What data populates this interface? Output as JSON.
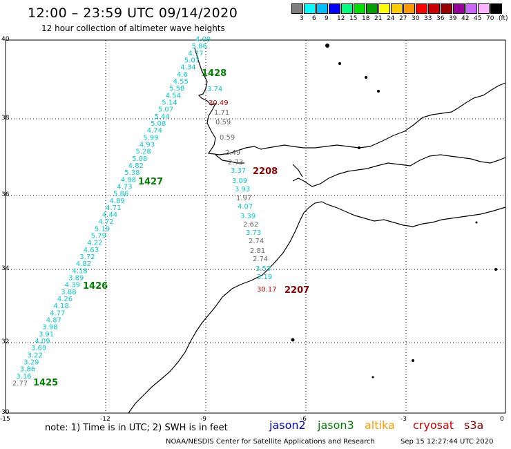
{
  "header": {
    "title": "12:00 – 23:59 UTC 09/14/2020",
    "subtitle": "12 hour collection of altimeter wave heights"
  },
  "scale": {
    "colors": [
      "#7f7f7f",
      "#00ffff",
      "#00bfff",
      "#0000ff",
      "#00ff7f",
      "#00dd00",
      "#00a000",
      "#ffff00",
      "#ffcc00",
      "#ff9900",
      "#ff0000",
      "#cc0000",
      "#990000",
      "#990099",
      "#cc66ff",
      "#ffb3ff",
      "#000000"
    ],
    "labels": [
      "3",
      "6",
      "9",
      "12",
      "15",
      "18",
      "21",
      "24",
      "27",
      "30",
      "33",
      "36",
      "39",
      "42",
      "45",
      "70",
      "(ft)"
    ]
  },
  "axes": {
    "lat_labels": [
      "40",
      "38",
      "36",
      "34",
      "32",
      "30"
    ],
    "lon_labels": [
      "-15",
      "-12",
      "-9",
      "-6",
      "-3",
      "0"
    ]
  },
  "passes": [
    {
      "label": "1428",
      "color": "#008000"
    },
    {
      "label": "1427",
      "color": "#008000"
    },
    {
      "label": "1426",
      "color": "#008000"
    },
    {
      "label": "1425",
      "color": "#008000"
    },
    {
      "label": "2208",
      "color": "#8b0000"
    },
    {
      "label": "2207",
      "color": "#8b0000"
    }
  ],
  "track_west": {
    "values": [
      "4.09",
      "5.86",
      "4.77",
      "5.07",
      "4.34",
      "4.6",
      "4.55",
      "5.58",
      "4.54",
      "5.14",
      "5.07",
      "5.44",
      "5.08",
      "4.74",
      "5.99",
      "4.93",
      "5.28",
      "5.08",
      "4.82",
      "5.38",
      "4.98",
      "4.73",
      "5.86",
      "4.89",
      "4.71",
      "4.44",
      "4.72",
      "5.19",
      "5.79",
      "4.22",
      "4.63",
      "3.72",
      "4.82",
      "4.18",
      "3.89",
      "4.39",
      "3.88",
      "4.26",
      "4.18",
      "4.77",
      "4.87",
      "3.98",
      "3.91",
      "4.09",
      "3.69",
      "3.22",
      "3.29",
      "3.86",
      "3.16",
      "2.77"
    ],
    "colors_note": "cyan except last"
  },
  "track_east": {
    "values": [
      "3.74",
      "30.49",
      "1.71",
      "0.59",
      "0.59",
      "2.49",
      "2.73",
      "3.37",
      "3.09",
      "3.93",
      "1.97",
      "4.07",
      "3.39",
      "2.62",
      "3.73",
      "2.74",
      "2.81",
      "2.74",
      "3.53",
      "3.19",
      "30.17"
    ]
  },
  "note": {
    "text": "note:  1) Time is in UTC;  2) SWH is in feet"
  },
  "legend": {
    "items": [
      {
        "label": "jason2",
        "color": "#0000cc"
      },
      {
        "label": "jason3",
        "color": "#008000"
      },
      {
        "label": "altika",
        "color": "#ff9900"
      },
      {
        "label": "cryosat",
        "color": "#cc0000"
      },
      {
        "label": "s3a",
        "color": "#8b0000"
      }
    ]
  },
  "footer": {
    "credit": "NOAA/NESDIS Center for Satellite Applications and Research",
    "timestamp": "Sep 15 12:27:44 UTC 2020"
  }
}
